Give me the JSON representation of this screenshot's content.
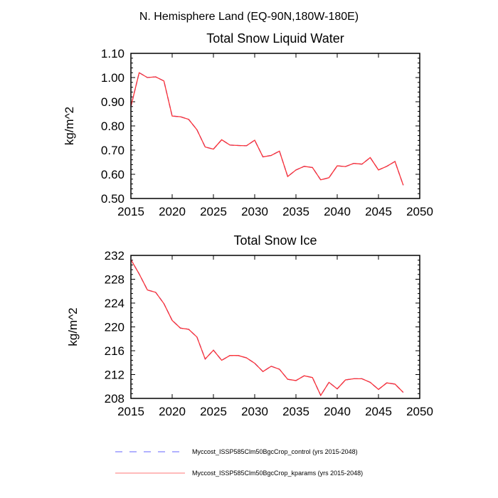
{
  "main_title": "N. Hemisphere Land (EQ-90N,180W-180E)",
  "colors": {
    "control": "#3333ff",
    "kparams": "#ff3333"
  },
  "legend": [
    {
      "label": "Myccost_ISSP585Clm50BgcCrop_control (yrs 2015-2048)",
      "style": "dashed",
      "color": "#6666ff"
    },
    {
      "label": "Myccost_ISSP585Clm50BgcCrop_kparams (yrs 2015-2048)",
      "style": "solid",
      "color": "#ff7777"
    }
  ],
  "chart_data": [
    {
      "type": "line",
      "title": "Total Snow Liquid Water",
      "xlabel": "",
      "ylabel": "kg/m^2",
      "xlim": [
        2015,
        2050
      ],
      "ylim": [
        0.5,
        1.1
      ],
      "xticks": [
        "2015",
        "2020",
        "2025",
        "2030",
        "2035",
        "2040",
        "2045",
        "2050"
      ],
      "yticks": [
        "0.50",
        "0.60",
        "0.70",
        "0.80",
        "0.90",
        "1.00",
        "1.10"
      ],
      "x": [
        2015,
        2016,
        2017,
        2018,
        2019,
        2020,
        2021,
        2022,
        2023,
        2024,
        2025,
        2026,
        2027,
        2028,
        2029,
        2030,
        2031,
        2032,
        2033,
        2034,
        2035,
        2036,
        2037,
        2038,
        2039,
        2040,
        2041,
        2042,
        2043,
        2044,
        2045,
        2046,
        2047,
        2048
      ],
      "series": [
        {
          "name": "Myccost_ISSP585Clm50BgcCrop_control",
          "values": [
            0.88,
            1.02,
            1.0,
            1.003,
            0.986,
            0.841,
            0.838,
            0.827,
            0.784,
            0.713,
            0.704,
            0.743,
            0.721,
            0.719,
            0.718,
            0.741,
            0.672,
            0.678,
            0.696,
            0.591,
            0.618,
            0.633,
            0.628,
            0.577,
            0.586,
            0.635,
            0.632,
            0.645,
            0.642,
            0.669,
            0.618,
            0.633,
            0.653,
            0.555
          ]
        },
        {
          "name": "Myccost_ISSP585Clm50BgcCrop_kparams",
          "values": [
            0.88,
            1.02,
            1.0,
            1.003,
            0.986,
            0.841,
            0.838,
            0.827,
            0.784,
            0.713,
            0.704,
            0.743,
            0.721,
            0.719,
            0.718,
            0.741,
            0.672,
            0.678,
            0.696,
            0.591,
            0.618,
            0.633,
            0.628,
            0.577,
            0.586,
            0.635,
            0.632,
            0.645,
            0.642,
            0.669,
            0.618,
            0.633,
            0.653,
            0.555
          ]
        }
      ]
    },
    {
      "type": "line",
      "title": "Total Snow Ice",
      "xlabel": "",
      "ylabel": "kg/m^2",
      "xlim": [
        2015,
        2050
      ],
      "ylim": [
        208,
        232
      ],
      "xticks": [
        "2015",
        "2020",
        "2025",
        "2030",
        "2035",
        "2040",
        "2045",
        "2050"
      ],
      "yticks": [
        "208",
        "212",
        "216",
        "220",
        "224",
        "228",
        "232"
      ],
      "x": [
        2015,
        2016,
        2017,
        2018,
        2019,
        2020,
        2021,
        2022,
        2023,
        2024,
        2025,
        2026,
        2027,
        2028,
        2029,
        2030,
        2031,
        2032,
        2033,
        2034,
        2035,
        2036,
        2037,
        2038,
        2039,
        2040,
        2041,
        2042,
        2043,
        2044,
        2045,
        2046,
        2047,
        2048
      ],
      "series": [
        {
          "name": "Myccost_ISSP585Clm50BgcCrop_control",
          "values": [
            231.3,
            228.9,
            226.2,
            225.8,
            223.9,
            221.1,
            219.8,
            219.6,
            218.3,
            214.6,
            216.1,
            214.4,
            215.2,
            215.2,
            214.8,
            213.9,
            212.5,
            213.4,
            212.9,
            211.2,
            211.0,
            211.8,
            211.5,
            208.5,
            210.7,
            209.6,
            211.1,
            211.3,
            211.3,
            210.7,
            209.5,
            210.6,
            210.4,
            209.0
          ]
        },
        {
          "name": "Myccost_ISSP585Clm50BgcCrop_kparams",
          "values": [
            231.3,
            228.9,
            226.2,
            225.8,
            223.9,
            221.1,
            219.8,
            219.6,
            218.3,
            214.6,
            216.1,
            214.4,
            215.2,
            215.2,
            214.8,
            213.9,
            212.5,
            213.4,
            212.9,
            211.2,
            211.0,
            211.8,
            211.5,
            208.5,
            210.7,
            209.6,
            211.1,
            211.3,
            211.3,
            210.7,
            209.5,
            210.6,
            210.4,
            209.0
          ]
        }
      ]
    }
  ]
}
